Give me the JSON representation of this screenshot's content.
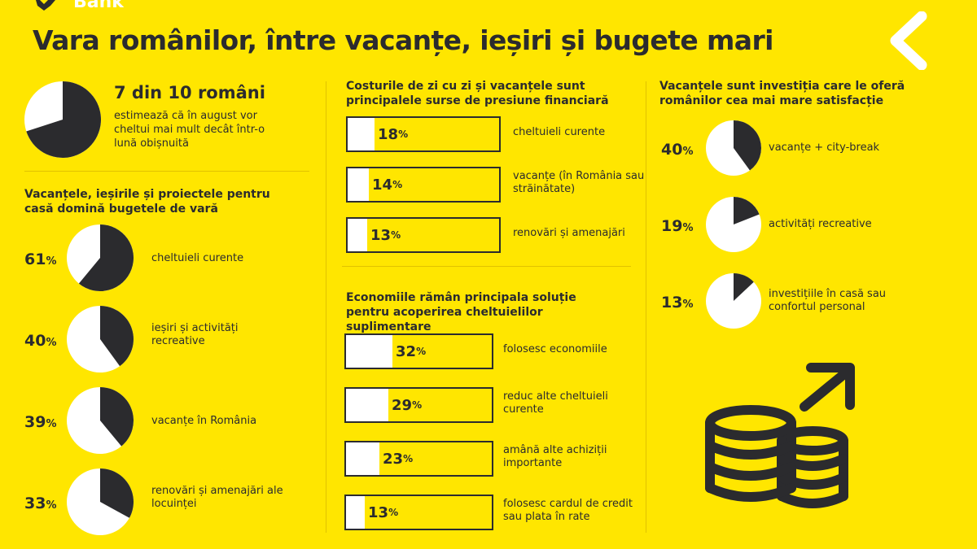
{
  "brand": {
    "name": "Bank"
  },
  "header": {
    "title": "Vara românilor, între vacanțe, ieșiri și bugete mari"
  },
  "colors": {
    "background": "#FFE600",
    "dark": "#2B2B2E",
    "light": "#FFFFFF"
  },
  "icons": {
    "logo": "bank-logo-icon",
    "chevron": "chevron-left-icon",
    "coins": "coin-stack-icon",
    "arrow": "arrow-up-right-icon"
  },
  "chart_data": [
    {
      "type": "pie",
      "id": "hero",
      "title": "7 din 10 români",
      "subtitle": "estimează că în august vor cheltui mai mult decât într-o lună obișnuită",
      "values": [
        70,
        30
      ]
    },
    {
      "type": "pie",
      "id": "summer-budgets",
      "title": "Vacanțele, ieșirile și proiectele pentru casă domină bugetele de vară",
      "categories": [
        "cheltuieli curente",
        "ieșiri și activități recreative",
        "vacanțe în România",
        "renovări și amenajări ale locuinței"
      ],
      "values": [
        61,
        40,
        39,
        33
      ],
      "unit": "%"
    },
    {
      "type": "bar",
      "id": "pressure",
      "title": "Costurile de zi cu zi și vacanțele sunt principalele surse de presiune financiară",
      "categories": [
        "cheltuieli curente",
        "vacanțe (în România sau străinătate)",
        "renovări și amenajări"
      ],
      "values": [
        18,
        14,
        13
      ],
      "unit": "%",
      "ylim": [
        0,
        100
      ]
    },
    {
      "type": "bar",
      "id": "solutions",
      "title": "Economiile rămân principala soluție pentru acoperirea cheltuielilor suplimentare",
      "categories": [
        "folosesc economiile",
        "reduc alte cheltuieli curente",
        "amână alte achiziții importante",
        "folosesc cardul de credit sau plata în rate"
      ],
      "values": [
        32,
        29,
        23,
        13
      ],
      "unit": "%",
      "ylim": [
        0,
        100
      ]
    },
    {
      "type": "pie",
      "id": "satisfaction",
      "title": "Vacanțele sunt investiția care le oferă românilor cea mai mare satisfacție",
      "categories": [
        "vacanțe + city-break",
        "activități recreative",
        "investițiile în casă sau confortul personal"
      ],
      "values": [
        40,
        19,
        13
      ],
      "unit": "%"
    }
  ]
}
